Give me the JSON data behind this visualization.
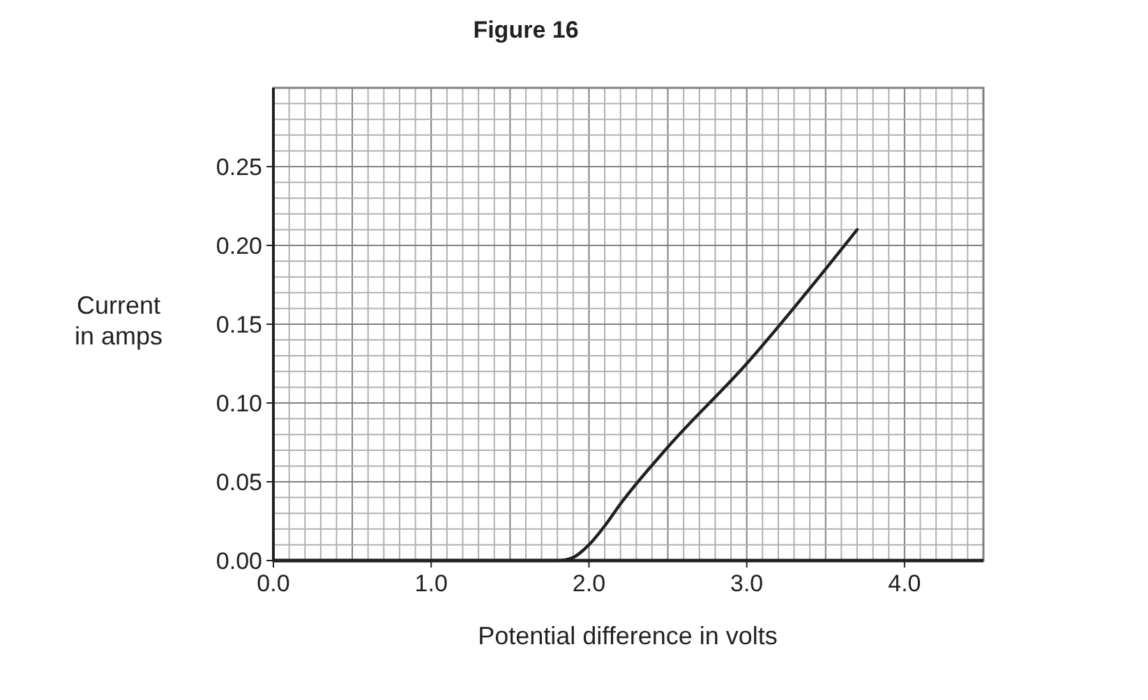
{
  "chart_data": {
    "type": "line",
    "title": "Figure 16",
    "xlabel": "Potential difference in volts",
    "ylabel": "Current\nin amps",
    "x": [
      0,
      1.8,
      1.9,
      2.0,
      2.1,
      2.2,
      2.5,
      3.0,
      3.5,
      3.7
    ],
    "series": [
      {
        "color": "#231f20",
        "values": [
          0,
          0,
          0.002,
          0.01,
          0.022,
          0.036,
          0.072,
          0.125,
          0.185,
          0.21
        ]
      }
    ],
    "xlim": [
      0,
      4.5
    ],
    "xticks": [
      {
        "value": 0,
        "label": "0.0"
      },
      {
        "value": 1,
        "label": "1.0"
      },
      {
        "value": 2,
        "label": "2.0"
      },
      {
        "value": 3,
        "label": "3.0"
      },
      {
        "value": 4,
        "label": "4.0"
      }
    ],
    "ylim": [
      0,
      0.3
    ],
    "yticks": [
      {
        "value": 0,
        "label": "0.00"
      },
      {
        "value": 0.05,
        "label": "0.05"
      },
      {
        "value": 0.1,
        "label": "0.10"
      },
      {
        "value": 0.15,
        "label": "0.15"
      },
      {
        "value": 0.2,
        "label": "0.20"
      },
      {
        "value": 0.25,
        "label": "0.25"
      }
    ],
    "grid": true,
    "marker": "none",
    "line_style": "solid"
  }
}
